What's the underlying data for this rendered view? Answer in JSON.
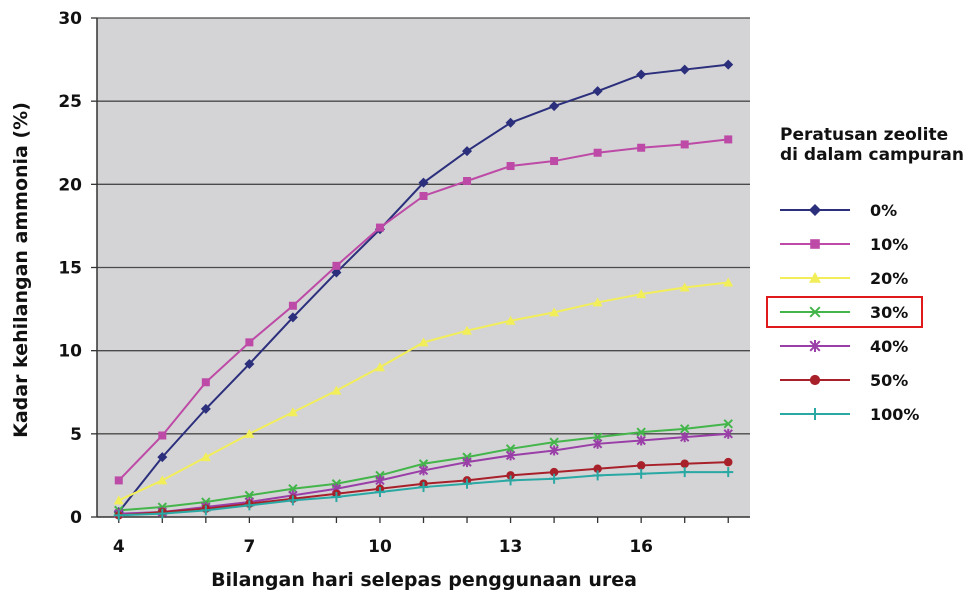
{
  "chart_data": {
    "type": "line",
    "xlabel": "Bilangan hari selepas penggunaan urea",
    "ylabel": "Kadar kehilangan ammonia (%)",
    "xlim": [
      3.5,
      18.5
    ],
    "ylim": [
      0,
      30
    ],
    "x": [
      4,
      5,
      6,
      7,
      8,
      9,
      10,
      11,
      12,
      13,
      14,
      15,
      16,
      17,
      18
    ],
    "xticks": [
      4,
      7,
      10,
      13,
      16
    ],
    "yticks": [
      0,
      5,
      10,
      15,
      20,
      25,
      30
    ],
    "grid": "horizontal",
    "legend": {
      "title_lines": [
        "Peratusan zeolite",
        "di dalam campuran"
      ],
      "placement": "right",
      "highlighted": "30%",
      "highlight_color": "#e01a1a"
    },
    "series": [
      {
        "name": "0%",
        "color": "#2b2f7c",
        "marker": "diamond",
        "values": [
          0.3,
          3.6,
          6.5,
          9.2,
          12.0,
          14.7,
          17.3,
          20.1,
          22.0,
          23.7,
          24.7,
          25.6,
          26.6,
          26.9,
          27.2
        ]
      },
      {
        "name": "10%",
        "color": "#bd4aa6",
        "marker": "square",
        "values": [
          2.2,
          4.9,
          8.1,
          10.5,
          12.7,
          15.1,
          17.4,
          19.3,
          20.2,
          21.1,
          21.4,
          21.9,
          22.2,
          22.4,
          22.7
        ]
      },
      {
        "name": "20%",
        "color": "#f2ee5a",
        "marker": "triangle",
        "values": [
          1.0,
          2.2,
          3.6,
          5.0,
          6.3,
          7.6,
          9.0,
          10.5,
          11.2,
          11.8,
          12.3,
          12.9,
          13.4,
          13.8,
          14.1
        ]
      },
      {
        "name": "30%",
        "color": "#43b54a",
        "marker": "x",
        "values": [
          0.4,
          0.6,
          0.9,
          1.3,
          1.7,
          2.0,
          2.5,
          3.2,
          3.6,
          4.1,
          4.5,
          4.8,
          5.1,
          5.3,
          5.6
        ]
      },
      {
        "name": "40%",
        "color": "#9a3fa8",
        "marker": "star",
        "values": [
          0.2,
          0.3,
          0.6,
          0.9,
          1.3,
          1.7,
          2.2,
          2.8,
          3.3,
          3.7,
          4.0,
          4.4,
          4.6,
          4.8,
          5.0
        ]
      },
      {
        "name": "50%",
        "color": "#a8212a",
        "marker": "circle",
        "values": [
          0.1,
          0.3,
          0.5,
          0.8,
          1.1,
          1.4,
          1.7,
          2.0,
          2.2,
          2.5,
          2.7,
          2.9,
          3.1,
          3.2,
          3.3
        ]
      },
      {
        "name": "100%",
        "color": "#2aa8a3",
        "marker": "plus",
        "values": [
          0.1,
          0.2,
          0.4,
          0.7,
          1.0,
          1.2,
          1.5,
          1.8,
          2.0,
          2.2,
          2.3,
          2.5,
          2.6,
          2.7,
          2.7
        ]
      }
    ]
  }
}
